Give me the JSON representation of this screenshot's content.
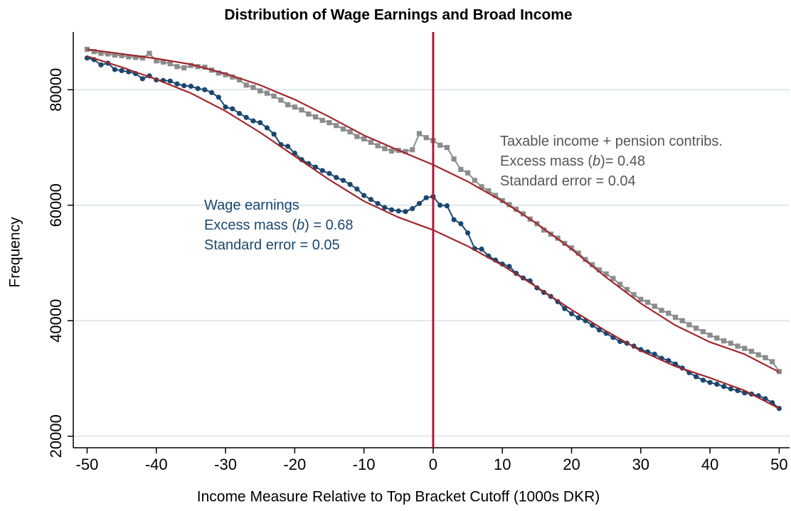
{
  "chart_data": {
    "type": "line",
    "title": "Distribution of Wage Earnings and Broad Income",
    "xlabel": "Income Measure Relative to Top Bracket Cutoff (1000s DKR)",
    "ylabel": "Frequency",
    "x": [
      -50,
      -49,
      -48,
      -47,
      -46,
      -45,
      -44,
      -43,
      -42,
      -41,
      -40,
      -39,
      -38,
      -37,
      -36,
      -35,
      -34,
      -33,
      -32,
      -31,
      -30,
      -29,
      -28,
      -27,
      -26,
      -25,
      -24,
      -23,
      -22,
      -21,
      -20,
      -19,
      -18,
      -17,
      -16,
      -15,
      -14,
      -13,
      -12,
      -11,
      -10,
      -9,
      -8,
      -7,
      -6,
      -5,
      -4,
      -3,
      -2,
      -1,
      0,
      1,
      2,
      3,
      4,
      5,
      6,
      7,
      8,
      9,
      10,
      11,
      12,
      13,
      14,
      15,
      16,
      17,
      18,
      19,
      20,
      21,
      22,
      23,
      24,
      25,
      26,
      27,
      28,
      29,
      30,
      31,
      32,
      33,
      34,
      35,
      36,
      37,
      38,
      39,
      40,
      41,
      42,
      43,
      44,
      45,
      46,
      47,
      48,
      49,
      50
    ],
    "series": [
      {
        "color": "#8c8c8c",
        "marker": "square",
        "values": [
          87000,
          86600,
          86300,
          86200,
          86000,
          85900,
          85700,
          85600,
          85500,
          86300,
          85000,
          84800,
          84500,
          84000,
          83800,
          84200,
          84000,
          83900,
          83400,
          82900,
          82600,
          82200,
          81700,
          80800,
          80400,
          79800,
          79400,
          78900,
          78200,
          77400,
          77000,
          76500,
          75800,
          75300,
          74700,
          74300,
          73800,
          73200,
          72700,
          71900,
          71500,
          70900,
          70300,
          69800,
          69400,
          69500,
          69300,
          69600,
          72400,
          71700,
          71200,
          70400,
          70000,
          68000,
          66200,
          65600,
          64300,
          63200,
          62500,
          61700,
          60800,
          60100,
          59300,
          58500,
          57600,
          56800,
          55700,
          55000,
          54300,
          53400,
          52600,
          51700,
          50600,
          49700,
          48800,
          48100,
          47300,
          46300,
          45400,
          44500,
          43700,
          43200,
          42500,
          41800,
          41300,
          40600,
          40000,
          39300,
          38700,
          38100,
          37500,
          37000,
          36500,
          36100,
          35600,
          35200,
          34700,
          34100,
          33600,
          32900,
          31200
        ]
      },
      {
        "color": "#1a476f",
        "marker": "circle",
        "values": [
          85500,
          85200,
          84300,
          84600,
          83500,
          83300,
          83100,
          82800,
          81900,
          82400,
          81700,
          81600,
          81500,
          81000,
          80700,
          80600,
          80200,
          80000,
          79500,
          78700,
          77000,
          76700,
          75900,
          75200,
          74600,
          74300,
          73400,
          72300,
          70500,
          70200,
          69000,
          67900,
          67200,
          66600,
          66000,
          65500,
          64800,
          64300,
          63600,
          62800,
          61700,
          61000,
          60300,
          59600,
          59200,
          59000,
          58900,
          59400,
          60300,
          61300,
          61500,
          60000,
          59900,
          57500,
          56800,
          55200,
          52500,
          52400,
          51200,
          50500,
          49800,
          49400,
          48200,
          47400,
          46900,
          45700,
          44900,
          44200,
          43300,
          42100,
          41200,
          40500,
          40000,
          39200,
          38400,
          37800,
          37100,
          36400,
          36100,
          35600,
          35000,
          34600,
          34200,
          33500,
          33100,
          32500,
          31800,
          31000,
          30300,
          29700,
          29300,
          29000,
          28600,
          28200,
          27900,
          27500,
          27300,
          27000,
          26500,
          25800,
          24800
        ]
      },
      {
        "color": "#a0282d",
        "marker": "none",
        "x": [
          -50,
          -45,
          -40,
          -35,
          -30,
          -25,
          -20,
          -15,
          -10,
          -5,
          0,
          5,
          10,
          15,
          20,
          25,
          30,
          35,
          40,
          45,
          50
        ],
        "values": [
          87000,
          86200,
          85400,
          84400,
          82800,
          80800,
          78300,
          75300,
          72100,
          69500,
          67000,
          64100,
          60700,
          56800,
          52400,
          47500,
          43000,
          39200,
          36300,
          34200,
          31100
        ]
      },
      {
        "color": "#a0282d",
        "marker": "none",
        "x": [
          -50,
          -45,
          -40,
          -35,
          -30,
          -25,
          -20,
          -15,
          -10,
          -5,
          0,
          5,
          10,
          15,
          20,
          25,
          30,
          35,
          40,
          45,
          50
        ],
        "values": [
          85800,
          83900,
          81800,
          79400,
          76300,
          72600,
          68500,
          64400,
          60700,
          57900,
          55700,
          52900,
          49600,
          45800,
          41900,
          38200,
          34800,
          32100,
          30100,
          27900,
          24800
        ]
      }
    ],
    "vline": {
      "x": 0,
      "color": "#b5173a"
    },
    "annotations": [
      {
        "color": "#555555",
        "lines": [
          [
            "Taxable income + pension contribs."
          ],
          [
            "Excess mass (",
            "b",
            ")= 0.48"
          ],
          [
            "Standard error = 0.04"
          ]
        ]
      },
      {
        "color": "#1a476f",
        "lines": [
          [
            "Wage earnings"
          ],
          [
            "Excess mass (",
            "b",
            ") = 0.68"
          ],
          [
            "Standard error = 0.05"
          ]
        ]
      }
    ],
    "xlim": [
      -52,
      51.5
    ],
    "ylim": [
      18000,
      90000
    ],
    "xticks": [
      -50,
      -40,
      -30,
      -20,
      -10,
      0,
      10,
      20,
      30,
      40,
      50
    ],
    "yticks": [
      20000,
      40000,
      60000,
      80000
    ],
    "grid": true,
    "grid_color": "#dfe9ea"
  }
}
